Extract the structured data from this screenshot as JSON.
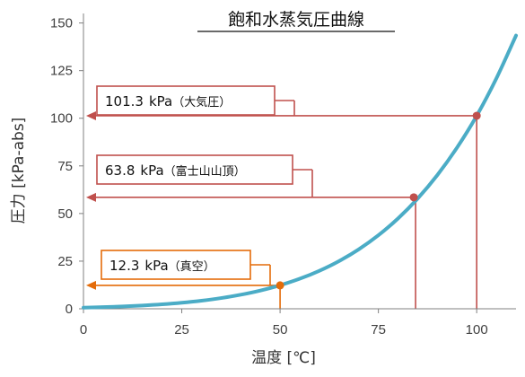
{
  "chart_data": {
    "type": "line",
    "title": "飽和水蒸気圧曲線",
    "xlabel": "温度 [℃]",
    "ylabel": "圧力 [kPa-abs]",
    "xlim": [
      0,
      110
    ],
    "ylim": [
      0,
      155
    ],
    "xticks": [
      "0",
      "25",
      "50",
      "75",
      "100"
    ],
    "yticks": [
      "0",
      "25",
      "50",
      "75",
      "100",
      "125",
      "150"
    ],
    "grid": false,
    "series": [
      {
        "x": [
          0,
          5,
          10,
          15,
          20,
          25,
          30,
          35,
          40,
          45,
          50,
          55,
          60,
          65,
          70,
          75,
          80,
          85,
          90,
          95,
          100,
          105,
          110
        ],
        "y": [
          0.61,
          0.87,
          1.23,
          1.71,
          2.34,
          3.17,
          4.25,
          5.63,
          7.38,
          9.59,
          12.35,
          15.76,
          19.95,
          25.04,
          31.2,
          38.6,
          47.4,
          57.9,
          70.2,
          84.6,
          101.3,
          120.9,
          143.4
        ]
      }
    ],
    "color_line": "#4bacc6",
    "annotations": [
      {
        "x": 100,
        "y": 101.3,
        "value": "101.3",
        "unit": "kPa",
        "note": "（大気圧）",
        "color": "#c0504d"
      },
      {
        "x": 84,
        "y": 58.5,
        "value": "63.8",
        "unit": "kPa",
        "note": "（富士山山頂）",
        "color": "#c0504d"
      },
      {
        "x": 50,
        "y": 12.3,
        "value": "12.3",
        "unit": "kPa",
        "note": "（真空）",
        "color": "#e46c0a"
      }
    ]
  }
}
